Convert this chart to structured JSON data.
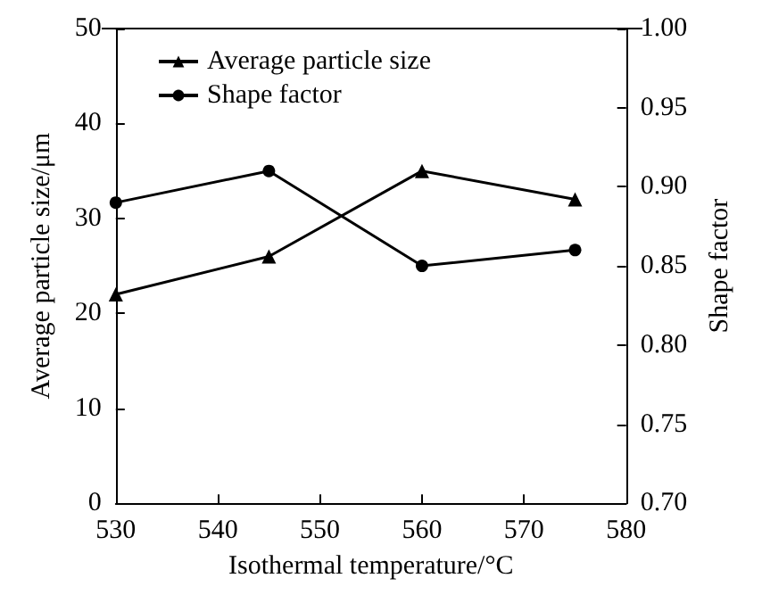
{
  "chart_data": {
    "type": "line",
    "xlabel": "Isothermal temperature/°C",
    "ylabel": "Average particle size/μm",
    "y2label": "Shape factor",
    "x": [
      530,
      545,
      560,
      575
    ],
    "series": [
      {
        "name": "Average particle size",
        "color": "#000000",
        "values": [
          22,
          26,
          35,
          32
        ],
        "marker": "triangle"
      },
      {
        "name": "Shape factor",
        "color": "#000000",
        "values": [
          0.89,
          0.91,
          0.85,
          0.86
        ],
        "marker": "circle",
        "axis": "y2"
      }
    ],
    "xlim": [
      530,
      580
    ],
    "xticks": [
      530,
      540,
      550,
      560,
      570,
      580
    ],
    "ylim": [
      0,
      50
    ],
    "yticks": [
      0,
      10,
      20,
      30,
      40,
      50
    ],
    "y2lim": [
      0.7,
      1.0
    ],
    "y2ticks": [
      {
        "value": 0.7,
        "label": "0.70"
      },
      {
        "value": 0.75,
        "label": "0.75"
      },
      {
        "value": 0.8,
        "label": "0.80"
      },
      {
        "value": 0.85,
        "label": "0.85"
      },
      {
        "value": 0.9,
        "label": "0.90"
      },
      {
        "value": 0.95,
        "label": "0.95"
      },
      {
        "value": 1.0,
        "label": "1.00"
      }
    ],
    "grid": false,
    "legend": "top left",
    "line_style": "solid"
  }
}
